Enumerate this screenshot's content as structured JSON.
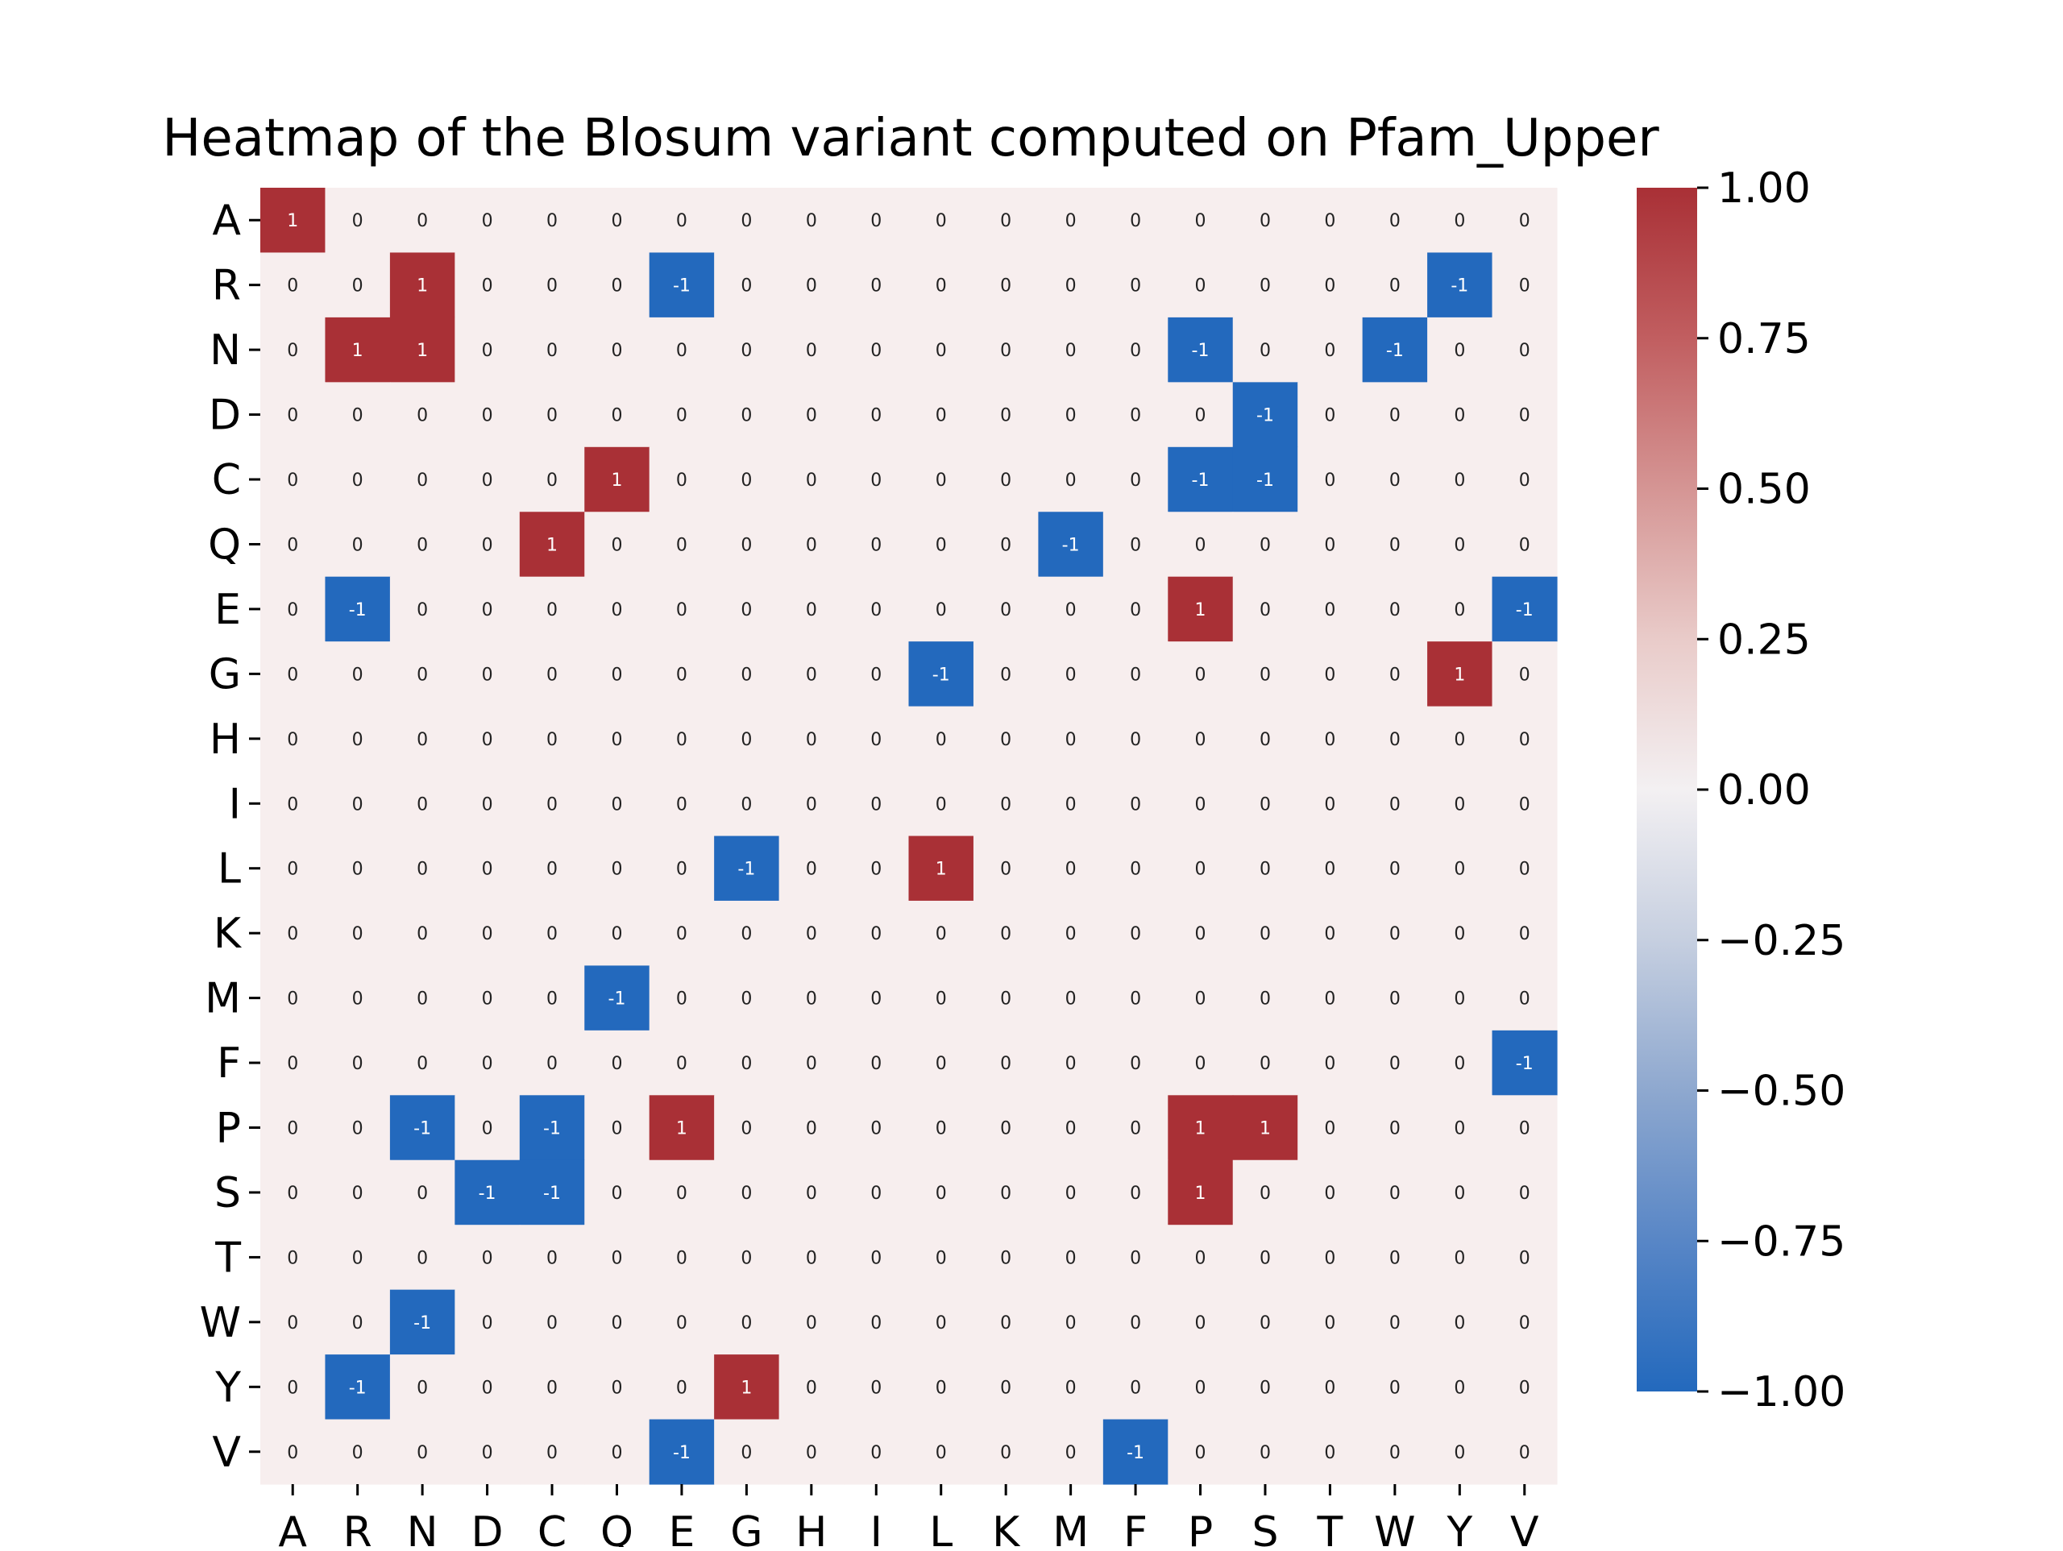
{
  "chart_data": {
    "type": "heatmap",
    "title": "Heatmap of the Blosum variant computed on Pfam_Upper",
    "x_labels": [
      "A",
      "R",
      "N",
      "D",
      "C",
      "Q",
      "E",
      "G",
      "H",
      "I",
      "L",
      "K",
      "M",
      "F",
      "P",
      "S",
      "T",
      "W",
      "Y",
      "V"
    ],
    "y_labels": [
      "A",
      "R",
      "N",
      "D",
      "C",
      "Q",
      "E",
      "G",
      "H",
      "I",
      "L",
      "K",
      "M",
      "F",
      "P",
      "S",
      "T",
      "W",
      "Y",
      "V"
    ],
    "values": [
      [
        1,
        0,
        0,
        0,
        0,
        0,
        0,
        0,
        0,
        0,
        0,
        0,
        0,
        0,
        0,
        0,
        0,
        0,
        0,
        0
      ],
      [
        0,
        0,
        1,
        0,
        0,
        0,
        -1,
        0,
        0,
        0,
        0,
        0,
        0,
        0,
        0,
        0,
        0,
        0,
        -1,
        0
      ],
      [
        0,
        1,
        1,
        0,
        0,
        0,
        0,
        0,
        0,
        0,
        0,
        0,
        0,
        0,
        -1,
        0,
        0,
        -1,
        0,
        0
      ],
      [
        0,
        0,
        0,
        0,
        0,
        0,
        0,
        0,
        0,
        0,
        0,
        0,
        0,
        0,
        0,
        -1,
        0,
        0,
        0,
        0
      ],
      [
        0,
        0,
        0,
        0,
        0,
        1,
        0,
        0,
        0,
        0,
        0,
        0,
        0,
        0,
        -1,
        -1,
        0,
        0,
        0,
        0
      ],
      [
        0,
        0,
        0,
        0,
        1,
        0,
        0,
        0,
        0,
        0,
        0,
        0,
        -1,
        0,
        0,
        0,
        0,
        0,
        0,
        0
      ],
      [
        0,
        -1,
        0,
        0,
        0,
        0,
        0,
        0,
        0,
        0,
        0,
        0,
        0,
        0,
        1,
        0,
        0,
        0,
        0,
        -1
      ],
      [
        0,
        0,
        0,
        0,
        0,
        0,
        0,
        0,
        0,
        0,
        -1,
        0,
        0,
        0,
        0,
        0,
        0,
        0,
        1,
        0
      ],
      [
        0,
        0,
        0,
        0,
        0,
        0,
        0,
        0,
        0,
        0,
        0,
        0,
        0,
        0,
        0,
        0,
        0,
        0,
        0,
        0
      ],
      [
        0,
        0,
        0,
        0,
        0,
        0,
        0,
        0,
        0,
        0,
        0,
        0,
        0,
        0,
        0,
        0,
        0,
        0,
        0,
        0
      ],
      [
        0,
        0,
        0,
        0,
        0,
        0,
        0,
        -1,
        0,
        0,
        1,
        0,
        0,
        0,
        0,
        0,
        0,
        0,
        0,
        0
      ],
      [
        0,
        0,
        0,
        0,
        0,
        0,
        0,
        0,
        0,
        0,
        0,
        0,
        0,
        0,
        0,
        0,
        0,
        0,
        0,
        0
      ],
      [
        0,
        0,
        0,
        0,
        0,
        -1,
        0,
        0,
        0,
        0,
        0,
        0,
        0,
        0,
        0,
        0,
        0,
        0,
        0,
        0
      ],
      [
        0,
        0,
        0,
        0,
        0,
        0,
        0,
        0,
        0,
        0,
        0,
        0,
        0,
        0,
        0,
        0,
        0,
        0,
        0,
        -1
      ],
      [
        0,
        0,
        -1,
        0,
        -1,
        0,
        1,
        0,
        0,
        0,
        0,
        0,
        0,
        0,
        1,
        1,
        0,
        0,
        0,
        0
      ],
      [
        0,
        0,
        0,
        -1,
        -1,
        0,
        0,
        0,
        0,
        0,
        0,
        0,
        0,
        0,
        1,
        0,
        0,
        0,
        0,
        0
      ],
      [
        0,
        0,
        0,
        0,
        0,
        0,
        0,
        0,
        0,
        0,
        0,
        0,
        0,
        0,
        0,
        0,
        0,
        0,
        0,
        0
      ],
      [
        0,
        0,
        -1,
        0,
        0,
        0,
        0,
        0,
        0,
        0,
        0,
        0,
        0,
        0,
        0,
        0,
        0,
        0,
        0,
        0
      ],
      [
        0,
        -1,
        0,
        0,
        0,
        0,
        0,
        1,
        0,
        0,
        0,
        0,
        0,
        0,
        0,
        0,
        0,
        0,
        0,
        0
      ],
      [
        0,
        0,
        0,
        0,
        0,
        0,
        -1,
        0,
        0,
        0,
        0,
        0,
        0,
        -1,
        0,
        0,
        0,
        0,
        0,
        0
      ]
    ],
    "vmin": -1.0,
    "vmax": 1.0,
    "colorbar_ticks": [
      "1.00",
      "0.75",
      "0.50",
      "0.25",
      "0.00",
      "−0.25",
      "−0.50",
      "−0.75",
      "−1.00"
    ],
    "colorbar_tick_values": [
      1.0,
      0.75,
      0.5,
      0.25,
      0.0,
      -0.25,
      -0.5,
      -0.75,
      -1.0
    ],
    "colormap": "vlag",
    "colors": {
      "positive": "#a93036",
      "zero": "#f7eeee",
      "negative": "#2369bd",
      "neutral_mid": "#f3f0f2"
    },
    "grid": false,
    "legend": "colorbar right"
  }
}
